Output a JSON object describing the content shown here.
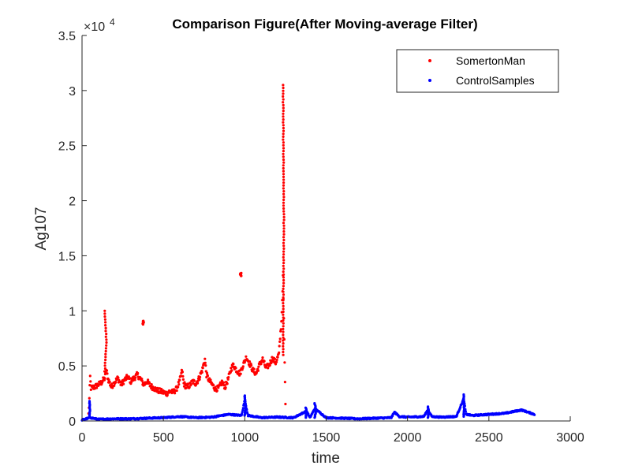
{
  "chart_data": {
    "type": "scatter",
    "title": "Comparison Figure(After Moving-average Filter)",
    "xlabel": "time",
    "ylabel": "Ag107",
    "xlim": [
      0,
      3000
    ],
    "ylim": [
      0,
      35000
    ],
    "x_ticks": [
      "0",
      "500",
      "1000",
      "1500",
      "2000",
      "2500",
      "3000"
    ],
    "y_ticks": [
      "0",
      "0.5",
      "1",
      "1.5",
      "2",
      "2.5",
      "3",
      "3.5"
    ],
    "y_exponent": {
      "base": "×10",
      "power": "4"
    },
    "grid": false,
    "legend_position": "top-right",
    "series": [
      {
        "name": "SomertonMan",
        "color": "#ff0000",
        "x_range": [
          40,
          1250
        ],
        "anchors": [
          [
            40,
            600
          ],
          [
            45,
            2000
          ],
          [
            50,
            4000
          ],
          [
            55,
            3000
          ],
          [
            80,
            3100
          ],
          [
            100,
            3300
          ],
          [
            120,
            3500
          ],
          [
            140,
            3900
          ],
          [
            150,
            4600
          ],
          [
            160,
            3800
          ],
          [
            180,
            3100
          ],
          [
            200,
            3500
          ],
          [
            220,
            3900
          ],
          [
            240,
            3300
          ],
          [
            260,
            3700
          ],
          [
            280,
            4000
          ],
          [
            300,
            3600
          ],
          [
            320,
            3900
          ],
          [
            340,
            4200
          ],
          [
            360,
            3800
          ],
          [
            380,
            3300
          ],
          [
            400,
            3600
          ],
          [
            420,
            3200
          ],
          [
            440,
            3000
          ],
          [
            460,
            2800
          ],
          [
            480,
            2700
          ],
          [
            500,
            2600
          ],
          [
            520,
            2500
          ],
          [
            540,
            2700
          ],
          [
            560,
            2600
          ],
          [
            580,
            2900
          ],
          [
            600,
            3600
          ],
          [
            615,
            4600
          ],
          [
            625,
            3400
          ],
          [
            640,
            3100
          ],
          [
            660,
            3200
          ],
          [
            680,
            3600
          ],
          [
            700,
            3400
          ],
          [
            720,
            3900
          ],
          [
            740,
            4700
          ],
          [
            755,
            5600
          ],
          [
            765,
            4200
          ],
          [
            780,
            3700
          ],
          [
            800,
            3300
          ],
          [
            820,
            2900
          ],
          [
            840,
            3000
          ],
          [
            860,
            3500
          ],
          [
            880,
            3100
          ],
          [
            900,
            3900
          ],
          [
            915,
            4700
          ],
          [
            930,
            5100
          ],
          [
            950,
            4600
          ],
          [
            970,
            4300
          ],
          [
            990,
            5100
          ],
          [
            1010,
            5800
          ],
          [
            1030,
            5200
          ],
          [
            1050,
            4600
          ],
          [
            1070,
            4300
          ],
          [
            1090,
            5100
          ],
          [
            1110,
            5600
          ],
          [
            1130,
            4800
          ],
          [
            1150,
            5100
          ],
          [
            1170,
            5700
          ],
          [
            1190,
            5300
          ],
          [
            1210,
            6100
          ],
          [
            1225,
            9000
          ],
          [
            1235,
            13000
          ],
          [
            1250,
            1500
          ]
        ],
        "spikes": [
          {
            "x0": 140,
            "x1": 160,
            "y0": 4500,
            "y1": 10000
          },
          {
            "x0": 1235,
            "x1": 1245,
            "y0": 6000,
            "y1": 30500
          }
        ],
        "clusters": [
          {
            "x": 375,
            "y": 8900,
            "spread_y": 400,
            "count": 10
          },
          {
            "x": 975,
            "y": 13300,
            "spread_y": 300,
            "count": 12
          }
        ]
      },
      {
        "name": "ControlSamples",
        "color": "#0000ff",
        "x_range": [
          0,
          2780
        ],
        "anchors": [
          [
            0,
            100
          ],
          [
            50,
            300
          ],
          [
            100,
            150
          ],
          [
            200,
            200
          ],
          [
            300,
            200
          ],
          [
            400,
            250
          ],
          [
            500,
            300
          ],
          [
            600,
            400
          ],
          [
            700,
            300
          ],
          [
            800,
            350
          ],
          [
            900,
            600
          ],
          [
            980,
            500
          ],
          [
            1000,
            1900
          ],
          [
            1020,
            500
          ],
          [
            1100,
            300
          ],
          [
            1200,
            350
          ],
          [
            1300,
            300
          ],
          [
            1380,
            900
          ],
          [
            1400,
            300
          ],
          [
            1430,
            1100
          ],
          [
            1450,
            900
          ],
          [
            1500,
            300
          ],
          [
            1600,
            250
          ],
          [
            1700,
            200
          ],
          [
            1800,
            250
          ],
          [
            1900,
            300
          ],
          [
            1920,
            800
          ],
          [
            1950,
            400
          ],
          [
            2000,
            350
          ],
          [
            2100,
            400
          ],
          [
            2125,
            1000
          ],
          [
            2150,
            400
          ],
          [
            2200,
            350
          ],
          [
            2300,
            400
          ],
          [
            2345,
            2000
          ],
          [
            2360,
            600
          ],
          [
            2400,
            500
          ],
          [
            2500,
            600
          ],
          [
            2600,
            700
          ],
          [
            2700,
            1000
          ],
          [
            2780,
            600
          ]
        ],
        "spikes": [
          {
            "x0": 1000,
            "x1": 1010,
            "y0": 500,
            "y1": 2300
          },
          {
            "x0": 1375,
            "x1": 1385,
            "y0": 300,
            "y1": 1200
          },
          {
            "x0": 1430,
            "x1": 1445,
            "y0": 300,
            "y1": 1600
          },
          {
            "x0": 2125,
            "x1": 2135,
            "y0": 300,
            "y1": 1300
          },
          {
            "x0": 2345,
            "x1": 2352,
            "y0": 400,
            "y1": 2400
          },
          {
            "x0": 45,
            "x1": 52,
            "y0": 300,
            "y1": 1800
          }
        ],
        "clusters": []
      }
    ]
  }
}
